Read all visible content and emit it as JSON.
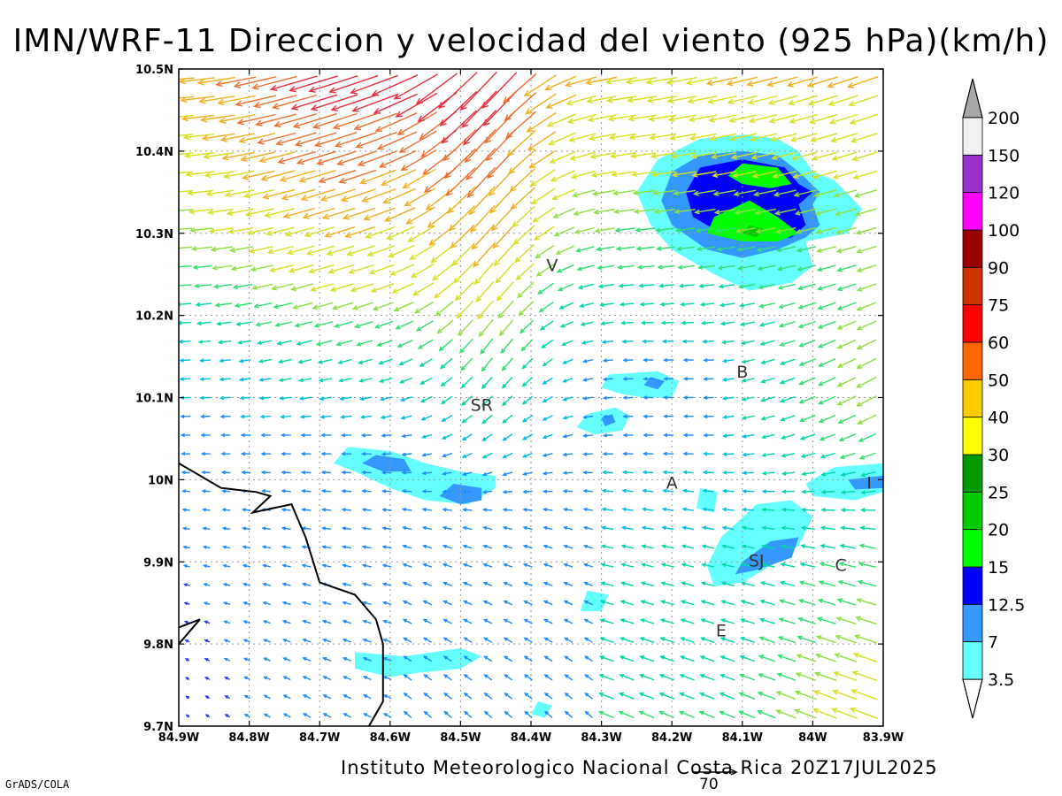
{
  "title": "IMN/WRF-11 Direccion y velocidad del viento (925 hPa)(km/h)",
  "credit": "Instituto Meteorologico Nacional Costa Rica 20Z17JUL2025",
  "software": "GrADS/COLA",
  "reference_vector_label": "70",
  "map": {
    "lon_range": [
      -84.9,
      -83.9
    ],
    "lat_range": [
      9.7,
      10.5
    ],
    "x_ticks": [
      {
        "lon": -84.9,
        "label": "84.9W"
      },
      {
        "lon": -84.8,
        "label": "84.8W"
      },
      {
        "lon": -84.7,
        "label": "84.7W"
      },
      {
        "lon": -84.6,
        "label": "84.6W"
      },
      {
        "lon": -84.5,
        "label": "84.5W"
      },
      {
        "lon": -84.4,
        "label": "84.4W"
      },
      {
        "lon": -84.3,
        "label": "84.3W"
      },
      {
        "lon": -84.2,
        "label": "84.2W"
      },
      {
        "lon": -84.1,
        "label": "84.1W"
      },
      {
        "lon": -84.0,
        "label": "84W"
      },
      {
        "lon": -83.9,
        "label": "83.9W"
      }
    ],
    "y_ticks": [
      {
        "lat": 10.5,
        "label": "10.5N"
      },
      {
        "lat": 10.4,
        "label": "10.4N"
      },
      {
        "lat": 10.3,
        "label": "10.3N"
      },
      {
        "lat": 10.2,
        "label": "10.2N"
      },
      {
        "lat": 10.1,
        "label": "10.1N"
      },
      {
        "lat": 10.0,
        "label": "10N"
      },
      {
        "lat": 9.9,
        "label": "9.9N"
      },
      {
        "lat": 9.8,
        "label": "9.8N"
      },
      {
        "lat": 9.7,
        "label": "9.7N"
      }
    ],
    "grid": true,
    "cities": [
      {
        "label": "V",
        "lon": -84.37,
        "lat": 10.26
      },
      {
        "label": "SR",
        "lon": -84.47,
        "lat": 10.09
      },
      {
        "label": "B",
        "lon": -84.1,
        "lat": 10.13
      },
      {
        "label": "A",
        "lon": -84.2,
        "lat": 9.995
      },
      {
        "label": "I",
        "lon": -83.92,
        "lat": 9.995
      },
      {
        "label": "SJ",
        "lon": -84.08,
        "lat": 9.9
      },
      {
        "label": "C",
        "lon": -83.96,
        "lat": 9.895
      },
      {
        "label": "E",
        "lon": -84.13,
        "lat": 9.815
      }
    ]
  },
  "colorbar": {
    "labels": [
      "3.5",
      "7",
      "12.5",
      "15",
      "20",
      "25",
      "30",
      "40",
      "50",
      "60",
      "75",
      "90",
      "100",
      "120",
      "150",
      "200"
    ],
    "colors": [
      "#66ffff",
      "#3399ff",
      "#0000ff",
      "#00ff00",
      "#00cc00",
      "#009900",
      "#ffff00",
      "#ffcc00",
      "#ff6600",
      "#ff0000",
      "#cc3300",
      "#990000",
      "#ff00ff",
      "#9933cc",
      "#f0f0f0"
    ],
    "top_cap_color": "#a8a8a8",
    "bottom_cap_color": "#ffffff"
  },
  "contours": [
    {
      "level": "3.5",
      "color": "#66ffff",
      "polygons": [
        [
          [
            -84.095,
            10.42
          ],
          [
            -84.05,
            10.415
          ],
          [
            -84.02,
            10.4
          ],
          [
            -84.0,
            10.375
          ],
          [
            -83.97,
            10.365
          ],
          [
            -83.93,
            10.33
          ],
          [
            -83.95,
            10.3
          ],
          [
            -84.01,
            10.29
          ],
          [
            -84.0,
            10.26
          ],
          [
            -84.03,
            10.24
          ],
          [
            -84.09,
            10.23
          ],
          [
            -84.14,
            10.25
          ],
          [
            -84.2,
            10.28
          ],
          [
            -84.23,
            10.31
          ],
          [
            -84.25,
            10.35
          ],
          [
            -84.22,
            10.39
          ],
          [
            -84.16,
            10.415
          ]
        ],
        [
          [
            -84.29,
            10.128
          ],
          [
            -84.22,
            10.132
          ],
          [
            -84.19,
            10.12
          ],
          [
            -84.2,
            10.1
          ],
          [
            -84.24,
            10.1
          ],
          [
            -84.27,
            10.104
          ],
          [
            -84.3,
            10.112
          ]
        ],
        [
          [
            -84.32,
            10.08
          ],
          [
            -84.28,
            10.088
          ],
          [
            -84.26,
            10.078
          ],
          [
            -84.27,
            10.06
          ],
          [
            -84.31,
            10.055
          ],
          [
            -84.335,
            10.064
          ]
        ],
        [
          [
            -84.66,
            10.04
          ],
          [
            -84.6,
            10.035
          ],
          [
            -84.55,
            10.02
          ],
          [
            -84.5,
            10.01
          ],
          [
            -84.45,
            10.005
          ],
          [
            -84.45,
            9.99
          ],
          [
            -84.49,
            9.97
          ],
          [
            -84.55,
            9.975
          ],
          [
            -84.6,
            9.99
          ],
          [
            -84.65,
            10.01
          ],
          [
            -84.68,
            10.02
          ]
        ],
        [
          [
            -84.16,
            9.99
          ],
          [
            -84.135,
            9.985
          ],
          [
            -84.14,
            9.96
          ],
          [
            -84.165,
            9.965
          ]
        ],
        [
          [
            -83.97,
            10.015
          ],
          [
            -83.9,
            10.02
          ],
          [
            -83.9,
            9.985
          ],
          [
            -83.94,
            9.975
          ],
          [
            -84.0,
            9.98
          ],
          [
            -84.01,
            9.995
          ]
        ],
        [
          [
            -84.08,
            9.97
          ],
          [
            -84.03,
            9.975
          ],
          [
            -84.0,
            9.955
          ],
          [
            -84.02,
            9.92
          ],
          [
            -84.05,
            9.9
          ],
          [
            -84.1,
            9.875
          ],
          [
            -84.14,
            9.87
          ],
          [
            -84.15,
            9.895
          ],
          [
            -84.13,
            9.93
          ]
        ],
        [
          [
            -84.32,
            9.865
          ],
          [
            -84.29,
            9.86
          ],
          [
            -84.3,
            9.84
          ],
          [
            -84.33,
            9.84
          ]
        ],
        [
          [
            -84.65,
            9.79
          ],
          [
            -84.58,
            9.785
          ],
          [
            -84.5,
            9.795
          ],
          [
            -84.47,
            9.785
          ],
          [
            -84.5,
            9.77
          ],
          [
            -84.56,
            9.765
          ],
          [
            -84.6,
            9.76
          ],
          [
            -84.65,
            9.77
          ]
        ],
        [
          [
            -84.39,
            9.73
          ],
          [
            -84.37,
            9.725
          ],
          [
            -84.38,
            9.71
          ],
          [
            -84.4,
            9.715
          ]
        ]
      ]
    },
    {
      "level": "7",
      "color": "#3399ff",
      "polygons": [
        [
          [
            -84.1,
            10.4
          ],
          [
            -84.05,
            10.395
          ],
          [
            -84.02,
            10.375
          ],
          [
            -83.99,
            10.35
          ],
          [
            -84.0,
            10.335
          ],
          [
            -83.99,
            10.31
          ],
          [
            -84.01,
            10.295
          ],
          [
            -84.05,
            10.28
          ],
          [
            -84.1,
            10.27
          ],
          [
            -84.15,
            10.28
          ],
          [
            -84.2,
            10.31
          ],
          [
            -84.215,
            10.34
          ],
          [
            -84.2,
            10.375
          ],
          [
            -84.16,
            10.395
          ]
        ],
        [
          [
            -84.23,
            10.125
          ],
          [
            -84.21,
            10.12
          ],
          [
            -84.22,
            10.11
          ],
          [
            -84.24,
            10.115
          ]
        ],
        [
          [
            -84.3,
            10.075
          ],
          [
            -84.285,
            10.08
          ],
          [
            -84.28,
            10.07
          ],
          [
            -84.295,
            10.065
          ]
        ],
        [
          [
            -84.62,
            10.03
          ],
          [
            -84.58,
            10.025
          ],
          [
            -84.57,
            10.01
          ],
          [
            -84.61,
            10.01
          ],
          [
            -84.64,
            10.02
          ]
        ],
        [
          [
            -84.51,
            9.995
          ],
          [
            -84.47,
            9.99
          ],
          [
            -84.47,
            9.975
          ],
          [
            -84.5,
            9.97
          ],
          [
            -84.53,
            9.98
          ]
        ],
        [
          [
            -83.95,
            10.0
          ],
          [
            -83.9,
            10.005
          ],
          [
            -83.9,
            9.99
          ],
          [
            -83.94,
            9.988
          ]
        ],
        [
          [
            -84.06,
            9.925
          ],
          [
            -84.02,
            9.93
          ],
          [
            -84.03,
            9.905
          ],
          [
            -84.08,
            9.89
          ],
          [
            -84.11,
            9.885
          ],
          [
            -84.1,
            9.9
          ]
        ]
      ]
    },
    {
      "level": "12.5",
      "color": "#0000ff",
      "polygons": [
        [
          [
            -84.1,
            10.39
          ],
          [
            -84.04,
            10.38
          ],
          [
            -84.02,
            10.36
          ],
          [
            -84.0,
            10.35
          ],
          [
            -84.02,
            10.335
          ],
          [
            -84.01,
            10.31
          ],
          [
            -84.03,
            10.295
          ],
          [
            -84.08,
            10.29
          ],
          [
            -84.13,
            10.3
          ],
          [
            -84.17,
            10.32
          ],
          [
            -84.18,
            10.35
          ],
          [
            -84.16,
            10.38
          ]
        ]
      ]
    },
    {
      "level": "15",
      "color": "#00ff00",
      "polygons": [
        [
          [
            -84.1,
            10.385
          ],
          [
            -84.05,
            10.38
          ],
          [
            -84.03,
            10.36
          ],
          [
            -84.06,
            10.355
          ],
          [
            -84.1,
            10.36
          ],
          [
            -84.12,
            10.37
          ]
        ],
        [
          [
            -84.09,
            10.34
          ],
          [
            -84.05,
            10.32
          ],
          [
            -84.02,
            10.3
          ],
          [
            -84.05,
            10.29
          ],
          [
            -84.1,
            10.29
          ],
          [
            -84.15,
            10.3
          ],
          [
            -84.14,
            10.32
          ]
        ]
      ]
    },
    {
      "level": "20",
      "color": "#00cc00",
      "polygons": [
        [
          [
            -84.09,
            10.31
          ],
          [
            -84.07,
            10.305
          ],
          [
            -84.08,
            10.295
          ],
          [
            -84.1,
            10.3
          ]
        ]
      ]
    }
  ],
  "coastline": [
    [
      [
        -84.9,
        10.02
      ],
      [
        -84.84,
        9.99
      ],
      [
        -84.79,
        9.985
      ],
      [
        -84.77,
        9.98
      ],
      [
        -84.795,
        9.96
      ],
      [
        -84.74,
        9.97
      ],
      [
        -84.72,
        9.93
      ],
      [
        -84.7,
        9.875
      ],
      [
        -84.65,
        9.86
      ],
      [
        -84.62,
        9.83
      ],
      [
        -84.61,
        9.8
      ],
      [
        -84.61,
        9.73
      ],
      [
        -84.63,
        9.7
      ]
    ],
    [
      [
        -84.9,
        9.82
      ],
      [
        -84.87,
        9.83
      ],
      [
        -84.9,
        9.8
      ]
    ]
  ]
}
